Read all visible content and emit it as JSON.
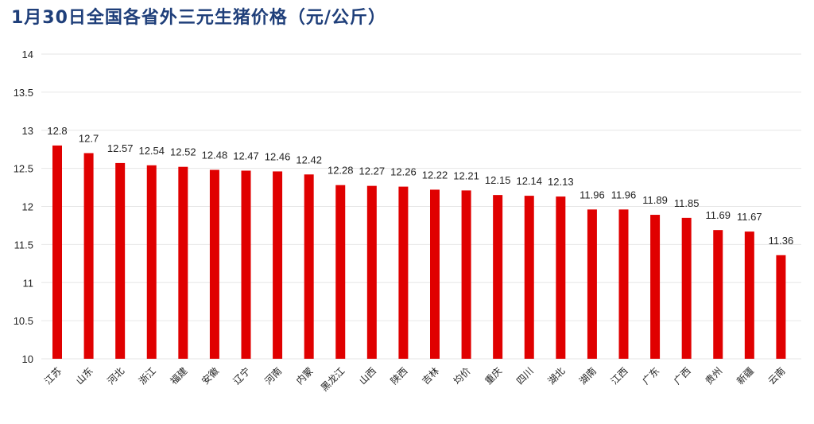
{
  "chart_data": {
    "type": "bar",
    "title": "1月30日全国各省外三元生猪价格（元/公斤）",
    "xlabel": "",
    "ylabel": "",
    "ylim": [
      10,
      14
    ],
    "yticks": [
      "10",
      "10.5",
      "11",
      "11.5",
      "12",
      "12.5",
      "13",
      "13.5",
      "14"
    ],
    "grid": true,
    "bar_color": "#e00000",
    "categories": [
      "江苏",
      "山东",
      "河北",
      "浙江",
      "福建",
      "安徽",
      "辽宁",
      "河南",
      "内蒙",
      "黑龙江",
      "山西",
      "陕西",
      "吉林",
      "均价",
      "重庆",
      "四川",
      "湖北",
      "湖南",
      "江西",
      "广东",
      "广西",
      "贵州",
      "新疆",
      "云南"
    ],
    "values": [
      12.8,
      12.7,
      12.57,
      12.54,
      12.52,
      12.48,
      12.47,
      12.46,
      12.42,
      12.28,
      12.27,
      12.26,
      12.22,
      12.21,
      12.15,
      12.14,
      12.13,
      11.96,
      11.96,
      11.89,
      11.85,
      11.69,
      11.67,
      11.36
    ],
    "value_labels": [
      "12.8",
      "12.7",
      "12.57",
      "12.54",
      "12.52",
      "12.48",
      "12.47",
      "12.46",
      "12.42",
      "12.28",
      "12.27",
      "12.26",
      "12.22",
      "12.21",
      "12.15",
      "12.14",
      "12.13",
      "11.96",
      "11.96",
      "11.89",
      "11.85",
      "11.69",
      "11.67",
      "11.36"
    ]
  }
}
